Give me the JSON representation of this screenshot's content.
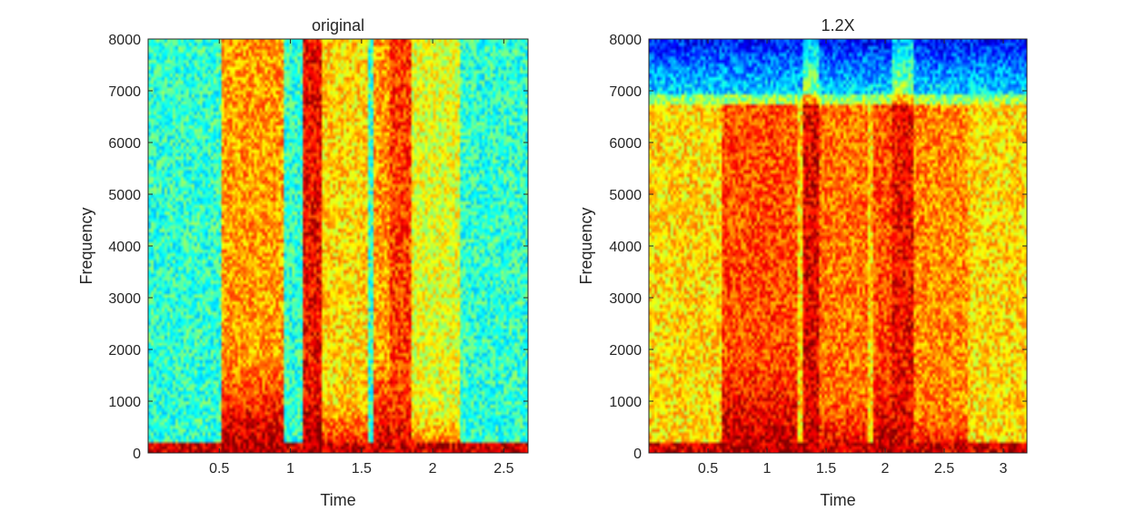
{
  "chart_data": [
    {
      "type": "heatmap",
      "title": "original",
      "xlabel": "Time",
      "ylabel": "Frequency",
      "xlim": [
        0,
        2.67
      ],
      "ylim": [
        0,
        8000
      ],
      "xticks": [
        0.5,
        1,
        1.5,
        2,
        2.5
      ],
      "xtick_labels": [
        "0.5",
        "1",
        "1.5",
        "2",
        "2.5"
      ],
      "yticks": [
        0,
        1000,
        2000,
        3000,
        4000,
        5000,
        6000,
        7000,
        8000
      ],
      "ytick_labels": [
        "0",
        "1000",
        "2000",
        "3000",
        "4000",
        "5000",
        "6000",
        "7000",
        "8000"
      ],
      "colormap": "jet",
      "background_level": 0.42,
      "low_band": {
        "max_freq": 200,
        "level": 0.92
      },
      "ceiling": null,
      "segments": [
        {
          "t0": 0.52,
          "t1": 0.95,
          "level": 0.72,
          "low_freq_boost": 0.25,
          "low_freq_max": 1800
        },
        {
          "t0": 1.08,
          "t1": 1.22,
          "level": 0.88,
          "low_freq_boost": 0.1,
          "low_freq_max": 1000
        },
        {
          "t0": 1.22,
          "t1": 1.55,
          "level": 0.66,
          "low_freq_boost": 0.22,
          "low_freq_max": 1000
        },
        {
          "t0": 1.58,
          "t1": 1.7,
          "level": 0.72,
          "low_freq_boost": 0.22,
          "low_freq_max": 1800
        },
        {
          "t0": 1.7,
          "t1": 1.85,
          "level": 0.82,
          "low_freq_boost": 0.1,
          "low_freq_max": 1000
        },
        {
          "t0": 1.85,
          "t1": 2.2,
          "level": 0.6,
          "low_freq_boost": 0.22,
          "low_freq_max": 800
        }
      ]
    },
    {
      "type": "heatmap",
      "title": "1.2X",
      "xlabel": "Time",
      "ylabel": "Frequency",
      "xlim": [
        0,
        3.2
      ],
      "ylim": [
        0,
        8000
      ],
      "xticks": [
        0.5,
        1,
        1.5,
        2,
        2.5,
        3
      ],
      "xtick_labels": [
        "0.5",
        "1",
        "1.5",
        "2",
        "2.5",
        "3"
      ],
      "yticks": [
        0,
        1000,
        2000,
        3000,
        4000,
        5000,
        6000,
        7000,
        8000
      ],
      "ytick_labels": [
        "0",
        "1000",
        "2000",
        "3000",
        "4000",
        "5000",
        "6000",
        "7000",
        "8000"
      ],
      "colormap": "jet",
      "background_level": 0.66,
      "low_band": {
        "max_freq": 200,
        "level": 0.92
      },
      "ceiling": {
        "freq": 6750,
        "level_above": 0.14,
        "level_edge": 0.55
      },
      "segments": [
        {
          "t0": 0.62,
          "t1": 1.25,
          "level": 0.8,
          "low_freq_boost": 0.15,
          "low_freq_max": 1800
        },
        {
          "t0": 1.3,
          "t1": 1.45,
          "level": 0.9,
          "low_freq_boost": 0.05,
          "low_freq_max": 1000
        },
        {
          "t0": 1.45,
          "t1": 1.85,
          "level": 0.76,
          "low_freq_boost": 0.15,
          "low_freq_max": 1000
        },
        {
          "t0": 1.9,
          "t1": 2.05,
          "level": 0.8,
          "low_freq_boost": 0.15,
          "low_freq_max": 1800
        },
        {
          "t0": 2.05,
          "t1": 2.25,
          "level": 0.88,
          "low_freq_boost": 0.05,
          "low_freq_max": 1000
        },
        {
          "t0": 2.25,
          "t1": 2.7,
          "level": 0.74,
          "low_freq_boost": 0.15,
          "low_freq_max": 800
        }
      ]
    }
  ]
}
